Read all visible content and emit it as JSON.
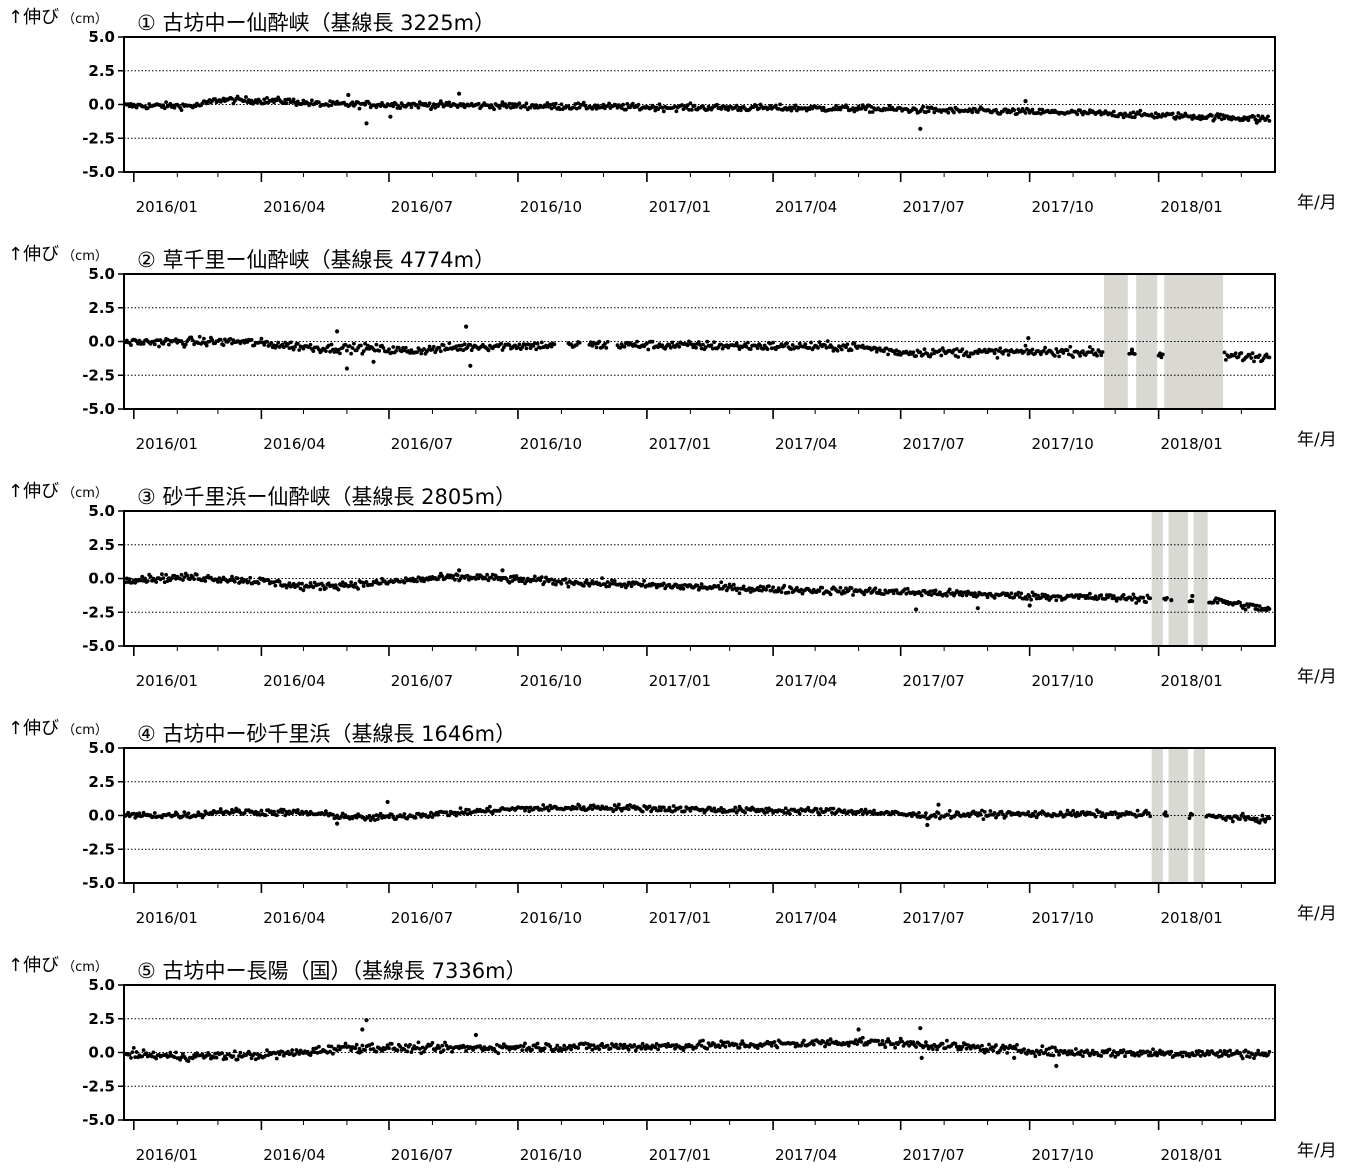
{
  "chart_data": [
    {
      "type": "scatter",
      "title": "① 古坊中ー仙酔峡（基線長 3225m）",
      "ylabel_main": "↑伸び",
      "ylabel_unit": "（cm）",
      "xlabel": "年/月",
      "ylim": [
        -5.0,
        5.0
      ],
      "xlim": [
        "2015-12-25",
        "2018-03-25"
      ],
      "y_ticks": [
        "5.0",
        "2.5",
        "0.0",
        "-2.5",
        "-5.0"
      ],
      "x_ticks": [
        "2016/01",
        "2016/04",
        "2016/07",
        "2016/10",
        "2017/01",
        "2017/04",
        "2017/07",
        "2017/10",
        "2018/01"
      ],
      "grid": "dotted horizontal at 2.5, 0.0, -2.5",
      "gaps": [],
      "trend": [
        [
          "2015-12-25",
          -0.1
        ],
        [
          "2016-02-15",
          -0.1
        ],
        [
          "2016-03-01",
          0.35
        ],
        [
          "2016-04-20",
          0.25
        ],
        [
          "2016-05-15",
          0.0
        ],
        [
          "2016-07-01",
          0.0
        ],
        [
          "2017-01-01",
          -0.2
        ],
        [
          "2017-06-01",
          -0.3
        ],
        [
          "2017-08-01",
          -0.45
        ],
        [
          "2017-11-01",
          -0.6
        ],
        [
          "2018-01-01",
          -0.8
        ],
        [
          "2018-03-20",
          -1.05
        ]
      ],
      "noise": 0.12,
      "outliers": [
        [
          "2016-06-02",
          0.7
        ],
        [
          "2016-06-15",
          -1.4
        ],
        [
          "2016-07-02",
          -0.9
        ],
        [
          "2016-08-20",
          0.8
        ],
        [
          "2017-07-15",
          -1.8
        ],
        [
          "2017-09-28",
          0.25
        ],
        [
          "2018-03-12",
          -1.35
        ]
      ],
      "missing": []
    },
    {
      "type": "scatter",
      "title": "② 草千里ー仙酔峡（基線長 4774m）",
      "ylabel_main": "↑伸び",
      "ylabel_unit": "（cm）",
      "xlabel": "年/月",
      "ylim": [
        -5.0,
        5.0
      ],
      "xlim": [
        "2015-12-25",
        "2018-03-25"
      ],
      "y_ticks": [
        "5.0",
        "2.5",
        "0.0",
        "-2.5",
        "-5.0"
      ],
      "x_ticks": [
        "2016/01",
        "2016/04",
        "2016/07",
        "2016/10",
        "2017/01",
        "2017/04",
        "2017/07",
        "2017/10",
        "2018/01"
      ],
      "grid": "dotted horizontal at 2.5, 0.0, -2.5",
      "gaps": [
        [
          "2017-11-23",
          "2017-12-10"
        ],
        [
          "2017-12-16",
          "2017-12-31"
        ],
        [
          "2018-01-05",
          "2018-02-16"
        ]
      ],
      "trend": [
        [
          "2015-12-25",
          -0.05
        ],
        [
          "2016-03-15",
          0.0
        ],
        [
          "2016-05-15",
          -0.5
        ],
        [
          "2016-06-15",
          -0.5
        ],
        [
          "2016-07-15",
          -0.7
        ],
        [
          "2016-09-01",
          -0.35
        ],
        [
          "2016-12-01",
          -0.25
        ],
        [
          "2017-06-01",
          -0.4
        ],
        [
          "2017-07-01",
          -0.8
        ],
        [
          "2017-09-01",
          -0.8
        ],
        [
          "2017-11-01",
          -0.75
        ],
        [
          "2018-01-01",
          -1.0
        ],
        [
          "2018-03-20",
          -1.15
        ]
      ],
      "noise": 0.16,
      "outliers": [
        [
          "2016-05-25",
          0.75
        ],
        [
          "2016-06-01",
          -2.0
        ],
        [
          "2016-06-20",
          -1.5
        ],
        [
          "2016-08-25",
          1.1
        ],
        [
          "2016-08-28",
          -1.8
        ],
        [
          "2017-09-30",
          0.25
        ],
        [
          "2017-12-13",
          -0.6
        ],
        [
          "2018-01-02",
          -1.0
        ]
      ],
      "missing": [
        [
          "2016-10-28",
          "2016-11-05"
        ],
        [
          "2016-11-15",
          "2016-11-20"
        ],
        [
          "2016-12-05",
          "2016-12-10"
        ]
      ]
    },
    {
      "type": "scatter",
      "title": "③ 砂千里浜ー仙酔峡（基線長 2805m）",
      "ylabel_main": "↑伸び",
      "ylabel_unit": "（cm）",
      "xlabel": "年/月",
      "ylim": [
        -5.0,
        5.0
      ],
      "xlim": [
        "2015-12-25",
        "2018-03-25"
      ],
      "y_ticks": [
        "5.0",
        "2.5",
        "0.0",
        "-2.5",
        "-5.0"
      ],
      "x_ticks": [
        "2016/01",
        "2016/04",
        "2016/07",
        "2016/10",
        "2017/01",
        "2017/04",
        "2017/07",
        "2017/10",
        "2018/01"
      ],
      "grid": "dotted horizontal at 2.5, 0.0, -2.5",
      "gaps": [
        [
          "2017-12-27",
          "2018-01-04"
        ],
        [
          "2018-01-08",
          "2018-01-22"
        ],
        [
          "2018-01-26",
          "2018-02-05"
        ]
      ],
      "trend": [
        [
          "2015-12-25",
          -0.05
        ],
        [
          "2016-02-15",
          0.1
        ],
        [
          "2016-04-01",
          -0.2
        ],
        [
          "2016-05-01",
          -0.6
        ],
        [
          "2016-06-15",
          -0.4
        ],
        [
          "2016-08-01",
          0.0
        ],
        [
          "2016-09-01",
          0.1
        ],
        [
          "2016-10-01",
          -0.1
        ],
        [
          "2017-01-01",
          -0.5
        ],
        [
          "2017-04-01",
          -0.8
        ],
        [
          "2017-07-01",
          -1.0
        ],
        [
          "2017-10-01",
          -1.3
        ],
        [
          "2018-01-01",
          -1.5
        ],
        [
          "2018-02-15",
          -1.7
        ],
        [
          "2018-03-20",
          -2.3
        ]
      ],
      "noise": 0.14,
      "outliers": [
        [
          "2016-08-20",
          0.6
        ],
        [
          "2016-09-20",
          0.6
        ],
        [
          "2017-07-12",
          -2.3
        ],
        [
          "2017-08-25",
          -2.2
        ],
        [
          "2017-10-01",
          -2.0
        ],
        [
          "2018-01-10",
          -1.6
        ],
        [
          "2018-01-25",
          -1.3
        ]
      ],
      "missing": []
    },
    {
      "type": "scatter",
      "title": "④ 古坊中ー砂千里浜（基線長 1646m）",
      "ylabel_main": "↑伸び",
      "ylabel_unit": "（cm）",
      "xlabel": "年/月",
      "ylim": [
        -5.0,
        5.0
      ],
      "xlim": [
        "2015-12-25",
        "2018-03-25"
      ],
      "y_ticks": [
        "5.0",
        "2.5",
        "0.0",
        "-2.5",
        "-5.0"
      ],
      "x_ticks": [
        "2016/01",
        "2016/04",
        "2016/07",
        "2016/10",
        "2017/01",
        "2017/04",
        "2017/07",
        "2017/10",
        "2018/01"
      ],
      "grid": "dotted horizontal at 2.5, 0.0, -2.5",
      "gaps": [
        [
          "2017-12-27",
          "2018-01-04"
        ],
        [
          "2018-01-08",
          "2018-01-22"
        ],
        [
          "2018-01-26",
          "2018-02-03"
        ]
      ],
      "trend": [
        [
          "2015-12-25",
          0.0
        ],
        [
          "2016-02-15",
          0.05
        ],
        [
          "2016-03-01",
          0.3
        ],
        [
          "2016-05-01",
          0.2
        ],
        [
          "2016-06-15",
          -0.2
        ],
        [
          "2016-08-01",
          0.1
        ],
        [
          "2016-10-01",
          0.5
        ],
        [
          "2016-12-01",
          0.6
        ],
        [
          "2017-03-01",
          0.4
        ],
        [
          "2017-06-01",
          0.3
        ],
        [
          "2017-07-15",
          0.0
        ],
        [
          "2017-09-01",
          0.1
        ],
        [
          "2018-01-01",
          0.1
        ],
        [
          "2018-03-20",
          -0.3
        ]
      ],
      "noise": 0.12,
      "outliers": [
        [
          "2016-05-25",
          -0.6
        ],
        [
          "2016-06-30",
          1.0
        ],
        [
          "2017-07-20",
          -0.7
        ],
        [
          "2017-07-28",
          0.8
        ],
        [
          "2018-01-06",
          0.0
        ],
        [
          "2018-01-24",
          0.05
        ]
      ],
      "missing": []
    },
    {
      "type": "scatter",
      "title": "⑤ 古坊中ー長陽（国）（基線長 7336m）",
      "ylabel_main": "↑伸び",
      "ylabel_unit": "（cm）",
      "xlabel": "年/月",
      "ylim": [
        -5.0,
        5.0
      ],
      "xlim": [
        "2015-12-25",
        "2018-03-25"
      ],
      "y_ticks": [
        "5.0",
        "2.5",
        "0.0",
        "-2.5",
        "-5.0"
      ],
      "x_ticks": [
        "2016/01",
        "2016/04",
        "2016/07",
        "2016/10",
        "2017/01",
        "2017/04",
        "2017/07",
        "2017/10",
        "2018/01"
      ],
      "grid": "dotted horizontal at 2.5, 0.0, -2.5",
      "gaps": [],
      "trend": [
        [
          "2015-12-25",
          -0.1
        ],
        [
          "2016-02-01",
          -0.3
        ],
        [
          "2016-04-01",
          -0.2
        ],
        [
          "2016-05-01",
          0.0
        ],
        [
          "2016-06-01",
          0.4
        ],
        [
          "2016-08-01",
          0.3
        ],
        [
          "2016-10-01",
          0.4
        ],
        [
          "2017-01-01",
          0.45
        ],
        [
          "2017-04-01",
          0.6
        ],
        [
          "2017-06-01",
          0.8
        ],
        [
          "2017-07-15",
          0.6
        ],
        [
          "2017-09-01",
          0.3
        ],
        [
          "2017-11-01",
          0.0
        ],
        [
          "2018-03-20",
          -0.1
        ]
      ],
      "noise": 0.16,
      "outliers": [
        [
          "2016-06-12",
          1.7
        ],
        [
          "2016-06-15",
          2.4
        ],
        [
          "2016-06-10",
          0.0
        ],
        [
          "2016-09-01",
          1.3
        ],
        [
          "2017-06-01",
          1.7
        ],
        [
          "2017-07-15",
          1.8
        ],
        [
          "2017-07-16",
          -0.4
        ],
        [
          "2017-09-20",
          -0.4
        ],
        [
          "2017-10-20",
          -1.0
        ]
      ],
      "missing": []
    }
  ]
}
